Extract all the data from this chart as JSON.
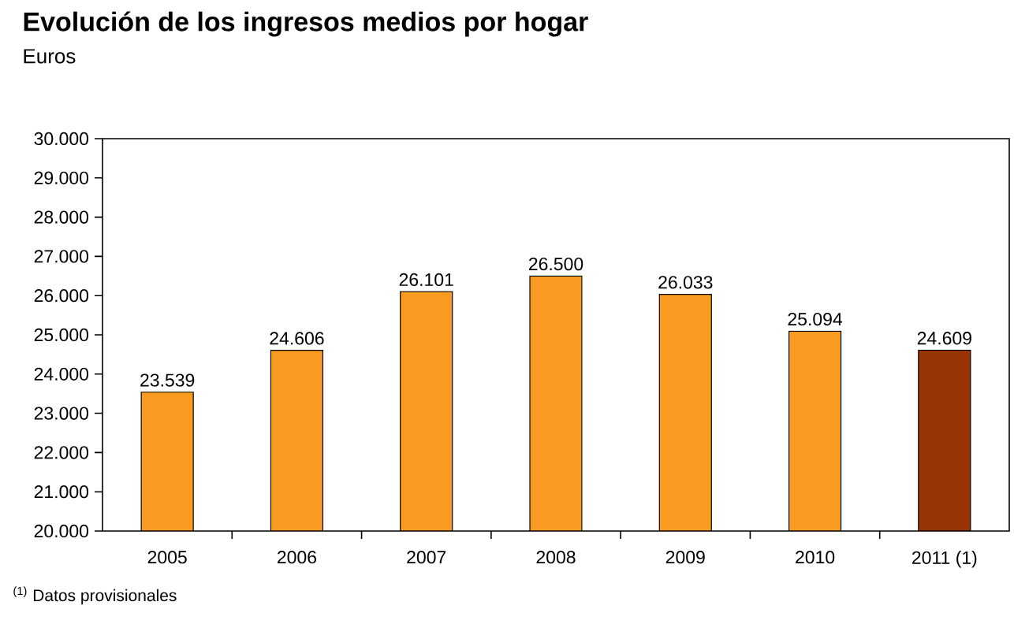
{
  "chart_data": {
    "type": "bar",
    "title": "Evolución de los ingresos medios por hogar",
    "subtitle": "Euros",
    "categories": [
      "2005",
      "2006",
      "2007",
      "2008",
      "2009",
      "2010",
      "2011 (1)"
    ],
    "values": [
      23539,
      24606,
      26101,
      26500,
      26033,
      25094,
      24609
    ],
    "value_labels": [
      "23.539",
      "24.606",
      "26.101",
      "26.500",
      "26.033",
      "25.094",
      "24.609"
    ],
    "colors": [
      "#f89b20",
      "#f89b20",
      "#f89b20",
      "#f89b20",
      "#f89b20",
      "#f89b20",
      "#993505"
    ],
    "ylim": [
      20000,
      30000
    ],
    "yticks": [
      {
        "value": 20000,
        "label": "20.000"
      },
      {
        "value": 21000,
        "label": "21.000"
      },
      {
        "value": 22000,
        "label": "22.000"
      },
      {
        "value": 23000,
        "label": "23.000"
      },
      {
        "value": 24000,
        "label": "24.000"
      },
      {
        "value": 25000,
        "label": "25.000"
      },
      {
        "value": 26000,
        "label": "26.000"
      },
      {
        "value": 27000,
        "label": "27.000"
      },
      {
        "value": 28000,
        "label": "28.000"
      },
      {
        "value": 29000,
        "label": "29.000"
      },
      {
        "value": 30000,
        "label": "30.000"
      }
    ],
    "grid": false,
    "annotations": [
      "$^{(1)}$ Datos provisionales"
    ]
  }
}
